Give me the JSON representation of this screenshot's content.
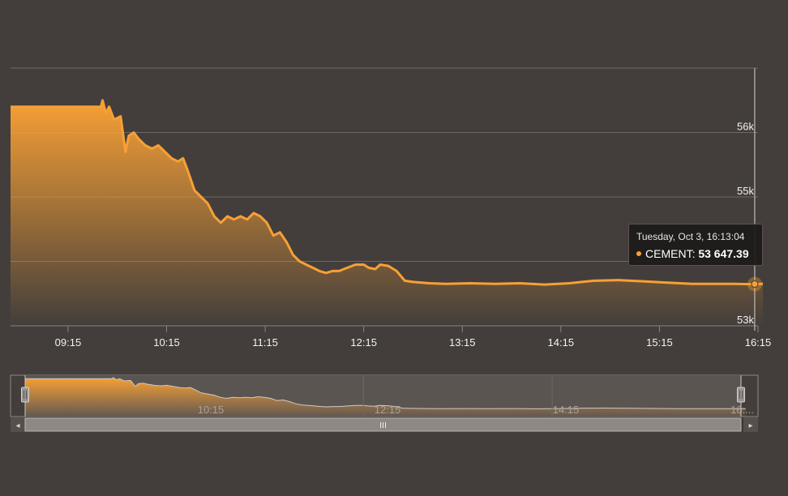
{
  "chart_data": {
    "type": "area",
    "title": "",
    "xlabel": "",
    "ylabel": "",
    "series": [
      {
        "name": "CEMENT",
        "points": [
          [
            "08:40",
            56400
          ],
          [
            "09:00",
            56400
          ],
          [
            "09:20",
            56400
          ],
          [
            "09:35",
            56400
          ],
          [
            "09:36",
            56500
          ],
          [
            "09:38",
            56300
          ],
          [
            "09:40",
            56400
          ],
          [
            "09:43",
            56200
          ],
          [
            "09:47",
            56250
          ],
          [
            "09:50",
            55700
          ],
          [
            "09:52",
            55950
          ],
          [
            "09:55",
            56000
          ],
          [
            "09:58",
            55900
          ],
          [
            "10:02",
            55800
          ],
          [
            "10:06",
            55750
          ],
          [
            "10:10",
            55800
          ],
          [
            "10:14",
            55700
          ],
          [
            "10:18",
            55600
          ],
          [
            "10:22",
            55550
          ],
          [
            "10:25",
            55600
          ],
          [
            "10:28",
            55400
          ],
          [
            "10:32",
            55100
          ],
          [
            "10:36",
            55000
          ],
          [
            "10:40",
            54900
          ],
          [
            "10:44",
            54700
          ],
          [
            "10:48",
            54600
          ],
          [
            "10:52",
            54700
          ],
          [
            "10:56",
            54650
          ],
          [
            "11:00",
            54700
          ],
          [
            "11:04",
            54650
          ],
          [
            "11:08",
            54750
          ],
          [
            "11:12",
            54700
          ],
          [
            "11:16",
            54600
          ],
          [
            "11:20",
            54400
          ],
          [
            "11:24",
            54450
          ],
          [
            "11:28",
            54300
          ],
          [
            "11:32",
            54100
          ],
          [
            "11:36",
            54000
          ],
          [
            "11:40",
            53950
          ],
          [
            "11:44",
            53900
          ],
          [
            "11:48",
            53850
          ],
          [
            "11:52",
            53820
          ],
          [
            "11:56",
            53850
          ],
          [
            "12:00",
            53850
          ],
          [
            "12:05",
            53900
          ],
          [
            "12:10",
            53950
          ],
          [
            "12:15",
            53950
          ],
          [
            "12:18",
            53900
          ],
          [
            "12:22",
            53880
          ],
          [
            "12:25",
            53950
          ],
          [
            "12:30",
            53930
          ],
          [
            "12:35",
            53850
          ],
          [
            "12:40",
            53700
          ],
          [
            "12:45",
            53680
          ],
          [
            "12:55",
            53660
          ],
          [
            "13:05",
            53650
          ],
          [
            "13:20",
            53660
          ],
          [
            "13:35",
            53650
          ],
          [
            "13:50",
            53660
          ],
          [
            "14:05",
            53640
          ],
          [
            "14:20",
            53660
          ],
          [
            "14:35",
            53700
          ],
          [
            "14:50",
            53710
          ],
          [
            "15:05",
            53690
          ],
          [
            "15:20",
            53670
          ],
          [
            "15:35",
            53650
          ],
          [
            "15:50",
            53650
          ],
          [
            "16:00",
            53650
          ],
          [
            "16:10",
            53647
          ],
          [
            "16:13",
            53647.39
          ],
          [
            "16:18",
            53650
          ]
        ]
      }
    ],
    "x_ticks": [
      "09:15",
      "10:15",
      "11:15",
      "12:15",
      "13:15",
      "14:15",
      "15:15",
      "16:15"
    ],
    "y_ticks": [
      {
        "value": 53000,
        "label": "53k"
      },
      {
        "value": 55000,
        "label": "55k"
      },
      {
        "value": 56000,
        "label": "56k"
      }
    ],
    "xlim": [
      "08:40",
      "16:15"
    ],
    "ylim": [
      53000,
      57000
    ],
    "grid": true,
    "legend": "none",
    "navigator": {
      "labels": [
        "10:15",
        "12:15",
        "14:15",
        "16:..."
      ],
      "scrollbar_grip": "III",
      "left_arrow": "◂",
      "right_arrow": "▸"
    },
    "tooltip": {
      "date": "Tuesday, Oct 3, 16:13:04",
      "series_name": "CEMENT",
      "separator": ": ",
      "value": "53 647.39",
      "time": "16:13"
    },
    "colors": {
      "line": "#f7a035",
      "background": "#433e3b",
      "grid": "#6e6864"
    }
  }
}
